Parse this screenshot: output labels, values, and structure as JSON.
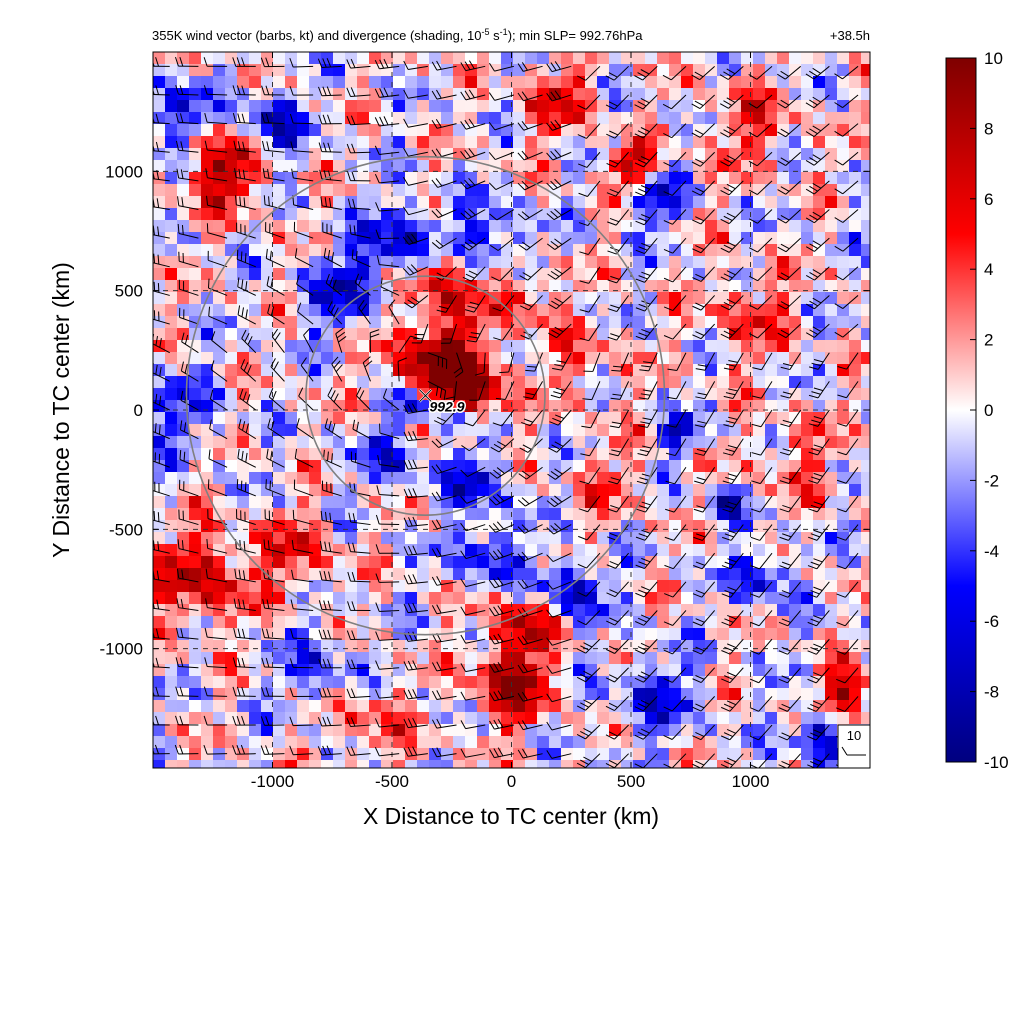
{
  "chart_data": {
    "type": "heatmap",
    "title": "355K wind vector (barbs, kt) and divergence (shading, 10",
    "title_exp1": "-5",
    "title_mid": " s",
    "title_exp2": "-1",
    "title_end": "); min SLP= 992.76hPa",
    "time_label": "+38.5h",
    "xlabel": "X Distance to TC center (km)",
    "ylabel": "Y Distance to TC center (km)",
    "xlim": [
      -1500,
      1500
    ],
    "ylim": [
      -1500,
      1500
    ],
    "xticks": [
      -1000,
      -500,
      0,
      500,
      1000
    ],
    "yticks": [
      -1000,
      -500,
      0,
      500,
      1000
    ],
    "xtick_labels": [
      "-1000",
      "-500",
      "0",
      "500",
      "1000"
    ],
    "ytick_labels": [
      "-1000",
      "-500",
      "0",
      "500",
      "1000"
    ],
    "grid": "dashed",
    "colorbar": {
      "range": [
        -10,
        10
      ],
      "ticks": [
        10,
        8,
        6,
        4,
        2,
        0,
        -2,
        -4,
        -6,
        -8,
        -10
      ],
      "tick_labels": [
        "10",
        "8",
        "6",
        "4",
        "2",
        "0",
        "-2",
        "-4",
        "-6",
        "-8",
        "-10"
      ],
      "colors": [
        "#00007f",
        "#0000ff",
        "#ffffff",
        "#ff0000",
        "#7f0000"
      ]
    },
    "range_rings_km": [
      500,
      1000
    ],
    "ring_color": "#808080",
    "center_marker": {
      "x": -360,
      "y": 60,
      "label": "992.9"
    },
    "reference_barb": {
      "label": "10"
    },
    "features": [
      {
        "x": -300,
        "y": 180,
        "sigma": 140,
        "value": 10
      },
      {
        "x": -180,
        "y": 80,
        "sigma": 90,
        "value": 9
      },
      {
        "x": -420,
        "y": 20,
        "sigma": 55,
        "value": -10
      },
      {
        "x": -250,
        "y": -20,
        "sigma": 60,
        "value": -9
      },
      {
        "x": -450,
        "y": 700,
        "sigma": 110,
        "value": -8
      },
      {
        "x": -100,
        "y": 720,
        "sigma": 100,
        "value": -6
      },
      {
        "x": -700,
        "y": 500,
        "sigma": 110,
        "value": -6
      },
      {
        "x": -300,
        "y": 560,
        "sigma": 110,
        "value": 7
      },
      {
        "x": 50,
        "y": 470,
        "sigma": 90,
        "value": 5
      },
      {
        "x": -150,
        "y": -300,
        "sigma": 90,
        "value": -6
      },
      {
        "x": -500,
        "y": -200,
        "sigma": 90,
        "value": -5
      },
      {
        "x": 0,
        "y": -1150,
        "sigma": 110,
        "value": 9
      },
      {
        "x": 50,
        "y": -900,
        "sigma": 90,
        "value": 7
      },
      {
        "x": -100,
        "y": -600,
        "sigma": 90,
        "value": -6
      },
      {
        "x": 250,
        "y": -750,
        "sigma": 90,
        "value": -7
      },
      {
        "x": 700,
        "y": -100,
        "sigma": 50,
        "value": -8
      },
      {
        "x": 900,
        "y": -400,
        "sigma": 50,
        "value": -8
      },
      {
        "x": 1050,
        "y": -700,
        "sigma": 80,
        "value": -6
      },
      {
        "x": 500,
        "y": 1020,
        "sigma": 60,
        "value": 9
      },
      {
        "x": 600,
        "y": 880,
        "sigma": 70,
        "value": -7
      },
      {
        "x": -1300,
        "y": -700,
        "sigma": 140,
        "value": 7
      },
      {
        "x": -900,
        "y": -600,
        "sigma": 110,
        "value": 5
      },
      {
        "x": -1200,
        "y": 1000,
        "sigma": 110,
        "value": 8
      },
      {
        "x": -1000,
        "y": 1200,
        "sigma": 90,
        "value": -7
      },
      {
        "x": -1400,
        "y": 1250,
        "sigma": 90,
        "value": -6
      },
      {
        "x": 200,
        "y": 1300,
        "sigma": 110,
        "value": 5
      },
      {
        "x": 1000,
        "y": 1200,
        "sigma": 130,
        "value": 4
      },
      {
        "x": 1000,
        "y": 400,
        "sigma": 130,
        "value": 4
      },
      {
        "x": 1200,
        "y": -200,
        "sigma": 130,
        "value": 3
      },
      {
        "x": 1400,
        "y": -1200,
        "sigma": 80,
        "value": 9
      },
      {
        "x": 1300,
        "y": -1350,
        "sigma": 80,
        "value": -8
      },
      {
        "x": -1400,
        "y": 0,
        "sigma": 120,
        "value": -4
      },
      {
        "x": -800,
        "y": -1100,
        "sigma": 120,
        "value": -4
      },
      {
        "x": 600,
        "y": -1200,
        "sigma": 120,
        "value": -5
      },
      {
        "x": -600,
        "y": -1300,
        "sigma": 120,
        "value": 4
      },
      {
        "x": 300,
        "y": 200,
        "sigma": 120,
        "value": 3
      },
      {
        "x": 400,
        "y": -300,
        "sigma": 110,
        "value": 3
      }
    ]
  }
}
